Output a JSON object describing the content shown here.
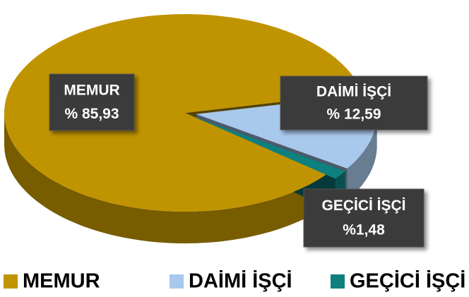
{
  "chart_data": {
    "type": "pie",
    "categories": [
      "MEMUR",
      "DAİMİ İŞÇİ",
      "GEÇİCİ İŞÇİ"
    ],
    "values": [
      85.93,
      12.59,
      1.48
    ],
    "value_labels": [
      "% 85,93",
      "% 12,59",
      "%1,48"
    ],
    "colors": [
      "#C09400",
      "#A8C8EC",
      "#0E8080"
    ],
    "legend": "bottom"
  }
}
